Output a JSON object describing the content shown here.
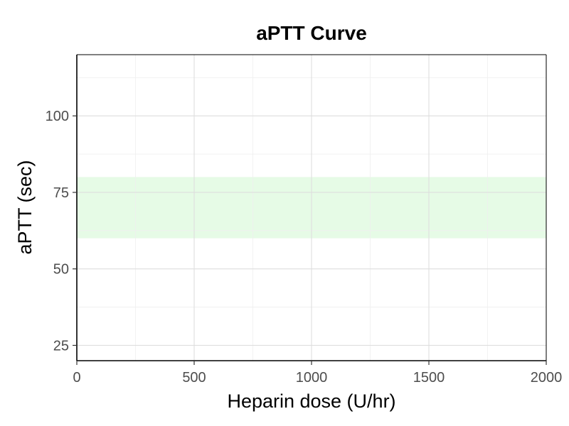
{
  "chart_data": {
    "type": "line",
    "title": "aPTT Curve",
    "xlabel": "Heparin dose (U/hr)",
    "ylabel": "aPTT (sec)",
    "xlim": [
      0,
      2000
    ],
    "ylim": [
      20,
      120
    ],
    "x_ticks": [
      0,
      500,
      1000,
      1500,
      2000
    ],
    "x_minor_ticks": [
      250,
      750,
      1250,
      1750
    ],
    "y_ticks": [
      25,
      50,
      75,
      100
    ],
    "y_minor_ticks": [
      37.5,
      62.5,
      87.5,
      112.5
    ],
    "grid": true,
    "series": [],
    "target_band": {
      "y_min": 60,
      "y_max": 80,
      "color": "#e6fbe6"
    },
    "colors": {
      "major_grid": "#dedede",
      "minor_grid": "#efefef",
      "axis": "#000000",
      "tick_label": "#4d4d4d"
    }
  }
}
